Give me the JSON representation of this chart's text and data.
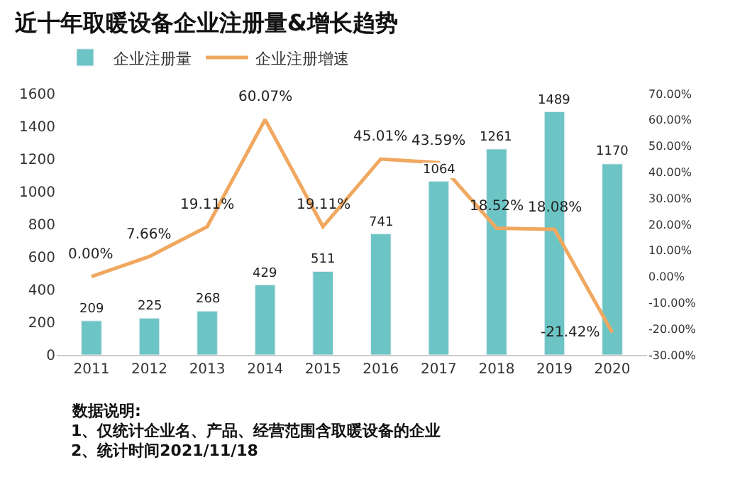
{
  "chart_data": {
    "type": "bar",
    "title": "近十年取暖设备企业注册量&增长趋势",
    "categories": [
      "2011",
      "2012",
      "2013",
      "2014",
      "2015",
      "2016",
      "2017",
      "2018",
      "2019",
      "2020"
    ],
    "series": [
      {
        "name": "企业注册量",
        "color": "#6cc5c4",
        "values": [
          209,
          225,
          268,
          429,
          511,
          741,
          1064,
          1261,
          1489,
          1170
        ]
      },
      {
        "name": "企业注册增速",
        "type": "line",
        "axis": "y2",
        "color": "#f0a860",
        "values": [
          0.0,
          7.66,
          19.11,
          60.07,
          19.11,
          45.01,
          43.59,
          18.52,
          18.08,
          -21.42
        ],
        "value_labels": [
          "0.00%",
          "7.66%",
          "19.11%",
          "60.07%",
          "19.11%",
          "45.01%",
          "43.59%",
          "18.52%",
          "18.08%",
          "-21.42%"
        ]
      }
    ],
    "ylim": [
      0,
      1600
    ],
    "yticks": [
      0,
      200,
      400,
      600,
      800,
      1000,
      1200,
      1400,
      1600
    ],
    "y2lim": [
      -30,
      70
    ],
    "y2ticks": [
      {
        "value": -30,
        "label": "-30.00%"
      },
      {
        "value": -20,
        "label": "-20.00%"
      },
      {
        "value": -10,
        "label": "-10.00%"
      },
      {
        "value": 0,
        "label": "0.00%"
      },
      {
        "value": 10,
        "label": "10.00%"
      },
      {
        "value": 20,
        "label": "20.00%"
      },
      {
        "value": 30,
        "label": "30.00%"
      },
      {
        "value": 40,
        "label": "40.00%"
      },
      {
        "value": 50,
        "label": "50.00%"
      },
      {
        "value": 60,
        "label": "60.00%"
      },
      {
        "value": 70,
        "label": "70.00%"
      }
    ],
    "data_labels": true,
    "legend": "top left",
    "marker": "none",
    "annotations": [
      "数据说明:",
      "1、仅统计企业名、产品、经营范围含取暖设备的企业",
      "2、统计时间2021/11/18"
    ]
  }
}
